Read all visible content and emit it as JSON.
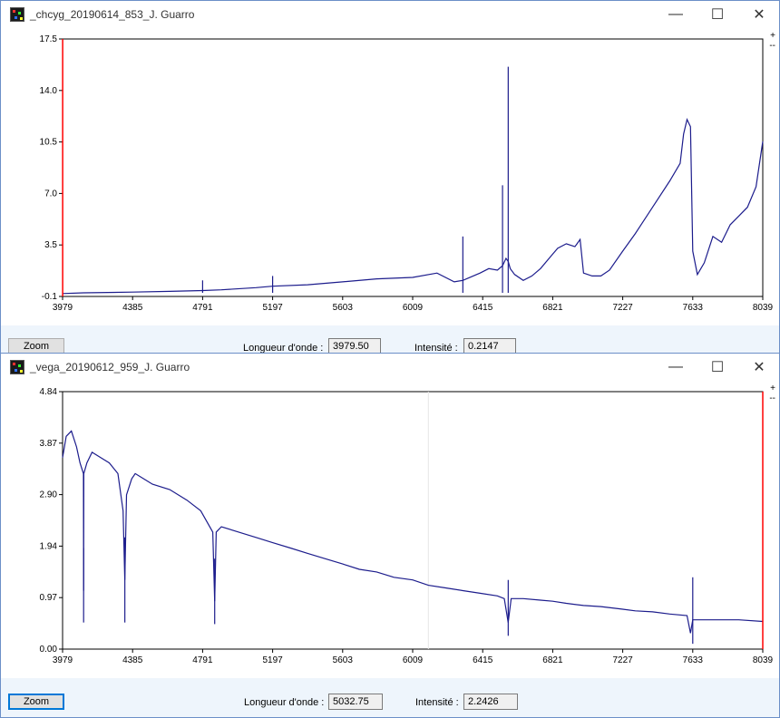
{
  "windows": [
    {
      "title": "_chcyg_20190614_853_J. Guarro",
      "zoom_label": "Zoom",
      "wavelength_label": "Longueur d'onde :",
      "wavelength_value": "3979.50",
      "intensity_label": "Intensité :",
      "intensity_value": "0.2147",
      "plus": "+",
      "minus": "--"
    },
    {
      "title": "_vega_20190612_959_J. Guarro",
      "zoom_label": "Zoom",
      "wavelength_label": "Longueur d'onde :",
      "wavelength_value": "5032.75",
      "intensity_label": "Intensité :",
      "intensity_value": "2.2426",
      "plus": "+",
      "minus": "--"
    }
  ],
  "chart_data": [
    {
      "type": "line",
      "xlim": [
        3979,
        8039
      ],
      "ylim": [
        -0.1,
        17.5
      ],
      "xticks": [
        "3979",
        "4385",
        "4791",
        "5197",
        "5603",
        "6009",
        "6415",
        "6821",
        "7227",
        "7633",
        "8039"
      ],
      "yticks": [
        "-0.1",
        "3.5",
        "7.0",
        "10.5",
        "14.0",
        "17.5"
      ],
      "cursor_x": 3979.5,
      "cursor_color": "#ff0000",
      "line_color": "#1c1c8c",
      "series": [
        {
          "x": [
            3979,
            4100,
            4385,
            4600,
            4791,
            4900,
            5100,
            5197,
            5400,
            5603,
            5800,
            6009,
            6150,
            6250,
            6300,
            6360,
            6400,
            6450,
            6500,
            6530,
            6550,
            6563,
            6575,
            6600,
            6650,
            6700,
            6750,
            6800,
            6821,
            6850,
            6900,
            6950,
            6980,
            7000,
            7050,
            7100,
            7150,
            7227,
            7300,
            7400,
            7500,
            7560,
            7580,
            7600,
            7620,
            7633,
            7660,
            7700,
            7750,
            7800,
            7850,
            7900,
            7950,
            8000,
            8039
          ],
          "y": [
            0.1,
            0.15,
            0.2,
            0.25,
            0.3,
            0.35,
            0.5,
            0.6,
            0.7,
            0.9,
            1.1,
            1.2,
            1.5,
            0.9,
            1.0,
            1.3,
            1.5,
            1.8,
            1.7,
            2.0,
            2.5,
            2.3,
            1.8,
            1.4,
            1.0,
            1.3,
            1.8,
            2.5,
            2.8,
            3.2,
            3.5,
            3.3,
            3.8,
            1.5,
            1.3,
            1.3,
            1.7,
            3.0,
            4.2,
            6.0,
            7.8,
            9.0,
            11.0,
            12.0,
            11.5,
            3.0,
            1.4,
            2.2,
            4.0,
            3.6,
            4.8,
            5.4,
            6.0,
            7.4,
            10.5
          ]
        }
      ],
      "spikes": [
        {
          "x": 4791,
          "y": 1.0
        },
        {
          "x": 5197,
          "y": 1.3
        },
        {
          "x": 6300,
          "y": 4.0
        },
        {
          "x": 6563,
          "y": 15.6
        },
        {
          "x": 6530,
          "y": 7.5
        }
      ]
    },
    {
      "type": "line",
      "xlim": [
        3979,
        8039
      ],
      "ylim": [
        0.0,
        4.84
      ],
      "xticks": [
        "3979",
        "4385",
        "4791",
        "5197",
        "5603",
        "6009",
        "6415",
        "6821",
        "7227",
        "7633",
        "8039"
      ],
      "yticks": [
        "0.00",
        "0.97",
        "1.94",
        "2.90",
        "3.87",
        "4.84"
      ],
      "cursor_x": 8039,
      "cursor_color": "#ff0000",
      "ghost_x": 6100,
      "line_color": "#1c1c8c",
      "series": [
        {
          "x": [
            3979,
            4000,
            4030,
            4060,
            4080,
            4100,
            4101,
            4102,
            4120,
            4150,
            4200,
            4250,
            4300,
            4330,
            4340,
            4350,
            4380,
            4400,
            4450,
            4500,
            4600,
            4700,
            4780,
            4850,
            4861,
            4870,
            4900,
            5000,
            5100,
            5197,
            5300,
            5400,
            5500,
            5603,
            5700,
            5800,
            5900,
            6009,
            6100,
            6200,
            6300,
            6400,
            6500,
            6540,
            6563,
            6580,
            6650,
            6750,
            6821,
            6900,
            7000,
            7100,
            7200,
            7227,
            7300,
            7400,
            7500,
            7600,
            7620,
            7633,
            7660,
            7700,
            7800,
            7900,
            8039
          ],
          "y": [
            3.6,
            4.0,
            4.1,
            3.8,
            3.5,
            3.3,
            1.1,
            3.3,
            3.5,
            3.7,
            3.6,
            3.5,
            3.3,
            2.6,
            1.3,
            2.9,
            3.2,
            3.3,
            3.2,
            3.1,
            3.0,
            2.8,
            2.6,
            2.2,
            0.9,
            2.2,
            2.3,
            2.2,
            2.1,
            2.0,
            1.9,
            1.8,
            1.7,
            1.6,
            1.5,
            1.45,
            1.35,
            1.3,
            1.2,
            1.15,
            1.1,
            1.05,
            1.0,
            0.95,
            0.5,
            0.95,
            0.95,
            0.92,
            0.9,
            0.86,
            0.82,
            0.8,
            0.76,
            0.75,
            0.72,
            0.7,
            0.66,
            0.63,
            0.3,
            0.55,
            0.55,
            0.55,
            0.55,
            0.55,
            0.52
          ]
        }
      ],
      "dips": [
        {
          "x": 4101,
          "y": 0.5
        },
        {
          "x": 4340,
          "y": 0.5
        },
        {
          "x": 4861,
          "y": 0.47
        },
        {
          "x": 6563,
          "y": 0.25
        },
        {
          "x": 7633,
          "y": 0.1
        }
      ]
    }
  ]
}
